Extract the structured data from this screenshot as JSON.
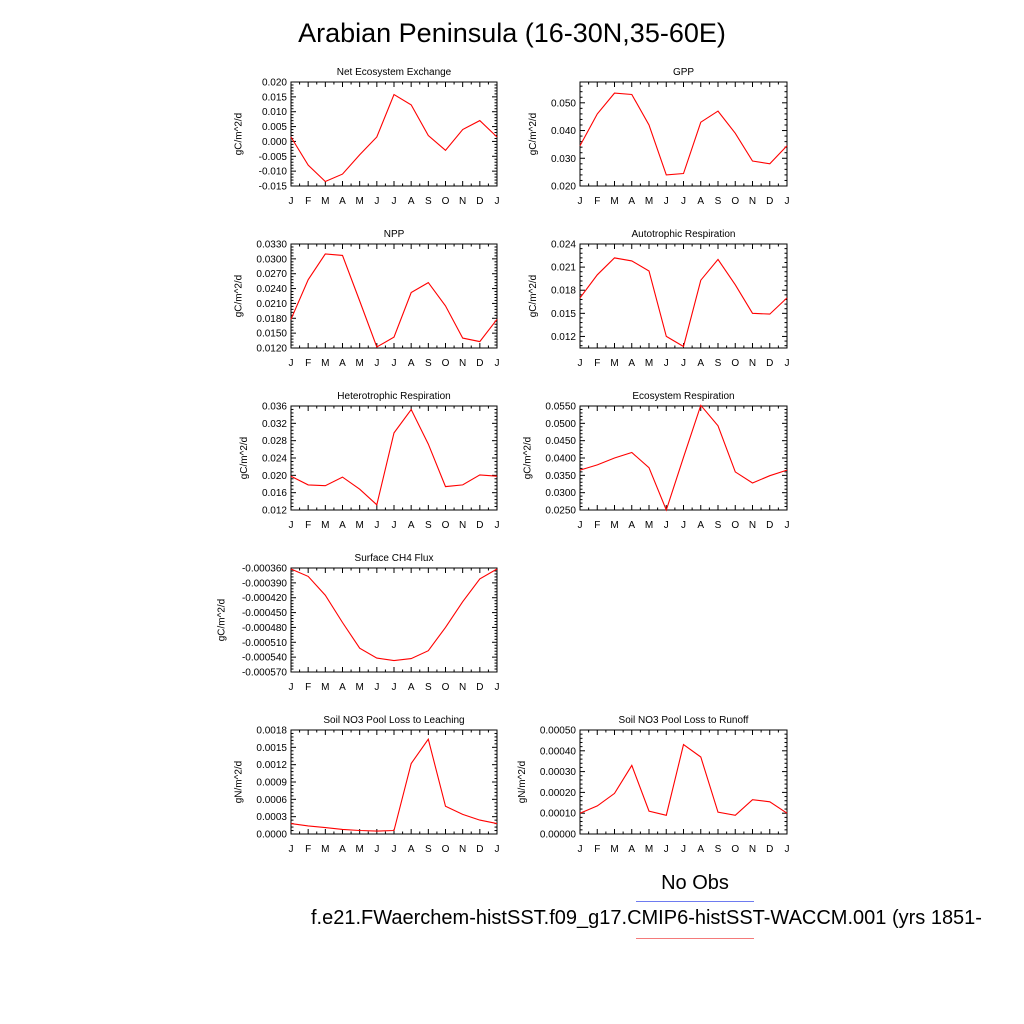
{
  "title": "Arabian Peninsula (16-30N,35-60E)",
  "legend": {
    "obs_label": "No Obs",
    "case_label": "f.e21.FWaerchem-histSST.f09_g17.CMIP6-histSST-WACCM.001 (yrs 1851-",
    "obs_color": "#6e7bf0",
    "case_color": "#f47a7a"
  },
  "colors": {
    "series": "#ff0000",
    "axis": "#000000"
  },
  "chart_data": [
    {
      "type": "line",
      "title": "Net Ecosystem Exchange",
      "ylabel": "gC/m^2/d",
      "categories": [
        "J",
        "F",
        "M",
        "A",
        "M",
        "J",
        "J",
        "A",
        "S",
        "O",
        "N",
        "D",
        "J"
      ],
      "series": [
        {
          "values": [
            0.0015,
            -0.008,
            -0.0135,
            -0.011,
            -0.0045,
            0.0015,
            0.0158,
            0.0123,
            0.002,
            -0.003,
            0.004,
            0.007,
            0.0015
          ]
        }
      ],
      "ylim": [
        -0.015,
        0.02
      ],
      "yticks": [
        -0.015,
        -0.01,
        -0.005,
        0.0,
        0.005,
        0.01,
        0.015,
        0.02
      ],
      "ytick_labels": [
        "-0.015",
        "-0.010",
        "-0.005",
        "0.000",
        "0.005",
        "0.010",
        "0.015",
        "0.020"
      ]
    },
    {
      "type": "line",
      "title": "GPP",
      "ylabel": "gC/m^2/d",
      "categories": [
        "J",
        "F",
        "M",
        "A",
        "M",
        "J",
        "J",
        "A",
        "S",
        "O",
        "N",
        "D",
        "J"
      ],
      "series": [
        {
          "values": [
            0.0345,
            0.046,
            0.0535,
            0.053,
            0.042,
            0.024,
            0.0245,
            0.043,
            0.047,
            0.039,
            0.029,
            0.028,
            0.0345
          ]
        }
      ],
      "ylim": [
        0.02,
        0.0575
      ],
      "yticks": [
        0.02,
        0.03,
        0.04,
        0.05
      ],
      "ytick_labels": [
        "0.020",
        "0.030",
        "0.040",
        "0.050"
      ]
    },
    {
      "type": "line",
      "title": "NPP",
      "ylabel": "gC/m^2/d",
      "categories": [
        "J",
        "F",
        "M",
        "A",
        "M",
        "J",
        "J",
        "A",
        "S",
        "O",
        "N",
        "D",
        "J"
      ],
      "series": [
        {
          "values": [
            0.0178,
            0.0258,
            0.031,
            0.0307,
            0.0215,
            0.0122,
            0.0142,
            0.0232,
            0.0252,
            0.0205,
            0.014,
            0.0133,
            0.0178
          ]
        }
      ],
      "ylim": [
        0.012,
        0.033
      ],
      "yticks": [
        0.012,
        0.015,
        0.018,
        0.021,
        0.024,
        0.027,
        0.03,
        0.033
      ],
      "ytick_labels": [
        "0.0120",
        "0.0150",
        "0.0180",
        "0.0210",
        "0.0240",
        "0.0270",
        "0.0300",
        "0.0330"
      ]
    },
    {
      "type": "line",
      "title": "Autotrophic Respiration",
      "ylabel": "gC/m^2/d",
      "categories": [
        "J",
        "F",
        "M",
        "A",
        "M",
        "J",
        "J",
        "A",
        "S",
        "O",
        "N",
        "D",
        "J"
      ],
      "series": [
        {
          "values": [
            0.017,
            0.02,
            0.0222,
            0.0218,
            0.0205,
            0.012,
            0.0107,
            0.0193,
            0.022,
            0.0187,
            0.015,
            0.0149,
            0.017
          ]
        }
      ],
      "ylim": [
        0.0105,
        0.024
      ],
      "yticks": [
        0.012,
        0.015,
        0.018,
        0.021,
        0.024
      ],
      "ytick_labels": [
        "0.012",
        "0.015",
        "0.018",
        "0.021",
        "0.024"
      ]
    },
    {
      "type": "line",
      "title": "Heterotrophic Respiration",
      "ylabel": "gC/m^2/d",
      "categories": [
        "J",
        "F",
        "M",
        "A",
        "M",
        "J",
        "J",
        "A",
        "S",
        "O",
        "N",
        "D",
        "J"
      ],
      "series": [
        {
          "values": [
            0.0198,
            0.0178,
            0.0176,
            0.0196,
            0.0168,
            0.0132,
            0.0298,
            0.0352,
            0.0272,
            0.0174,
            0.0178,
            0.0201,
            0.0198
          ]
        }
      ],
      "ylim": [
        0.012,
        0.036
      ],
      "yticks": [
        0.012,
        0.016,
        0.02,
        0.024,
        0.028,
        0.032,
        0.036
      ],
      "ytick_labels": [
        "0.012",
        "0.016",
        "0.020",
        "0.024",
        "0.028",
        "0.032",
        "0.036"
      ]
    },
    {
      "type": "line",
      "title": "Ecosystem Respiration",
      "ylabel": "gC/m^2/d",
      "categories": [
        "J",
        "F",
        "M",
        "A",
        "M",
        "J",
        "J",
        "A",
        "S",
        "O",
        "N",
        "D",
        "J"
      ],
      "series": [
        {
          "values": [
            0.0365,
            0.038,
            0.04,
            0.0416,
            0.0372,
            0.025,
            0.0402,
            0.0552,
            0.0493,
            0.036,
            0.0328,
            0.0349,
            0.0365
          ]
        }
      ],
      "ylim": [
        0.025,
        0.055
      ],
      "yticks": [
        0.025,
        0.03,
        0.035,
        0.04,
        0.045,
        0.05,
        0.055
      ],
      "ytick_labels": [
        "0.0250",
        "0.0300",
        "0.0350",
        "0.0400",
        "0.0450",
        "0.0500",
        "0.0550"
      ]
    },
    {
      "type": "line",
      "title": "Surface CH4 Flux",
      "ylabel": "gC/m^2/d",
      "categories": [
        "J",
        "F",
        "M",
        "A",
        "M",
        "J",
        "J",
        "A",
        "S",
        "O",
        "N",
        "D",
        "J"
      ],
      "series": [
        {
          "values": [
            -0.000362,
            -0.000377,
            -0.000415,
            -0.00047,
            -0.000522,
            -0.000542,
            -0.000547,
            -0.000543,
            -0.000527,
            -0.00048,
            -0.000428,
            -0.000382,
            -0.000362
          ]
        }
      ],
      "ylim": [
        -0.00057,
        -0.00036
      ],
      "yticks": [
        -0.00057,
        -0.00054,
        -0.00051,
        -0.00048,
        -0.00045,
        -0.00042,
        -0.00039,
        -0.00036
      ],
      "ytick_labels": [
        "-0.000570",
        "-0.000540",
        "-0.000510",
        "-0.000480",
        "-0.000450",
        "-0.000420",
        "-0.000390",
        "-0.000360"
      ]
    },
    {
      "type": "line",
      "title": "Soil NO3 Pool Loss to Leaching",
      "ylabel": "gN/m^2/d",
      "categories": [
        "J",
        "F",
        "M",
        "A",
        "M",
        "J",
        "J",
        "A",
        "S",
        "O",
        "N",
        "D",
        "J"
      ],
      "series": [
        {
          "values": [
            0.00018,
            0.00014,
            0.00011,
            8e-05,
            6e-05,
            5e-05,
            6e-05,
            0.00122,
            0.00164,
            0.00048,
            0.00034,
            0.00024,
            0.00018
          ]
        }
      ],
      "ylim": [
        0.0,
        0.0018
      ],
      "yticks": [
        0.0,
        0.0003,
        0.0006,
        0.0009,
        0.0012,
        0.0015,
        0.0018
      ],
      "ytick_labels": [
        "0.0000",
        "0.0003",
        "0.0006",
        "0.0009",
        "0.0012",
        "0.0015",
        "0.0018"
      ]
    },
    {
      "type": "line",
      "title": "Soil NO3 Pool Loss to Runoff",
      "ylabel": "gN/m^2/d",
      "categories": [
        "J",
        "F",
        "M",
        "A",
        "M",
        "J",
        "J",
        "A",
        "S",
        "O",
        "N",
        "D",
        "J"
      ],
      "series": [
        {
          "values": [
            0.0001,
            0.000135,
            0.000195,
            0.00033,
            0.00011,
            9e-05,
            0.00043,
            0.00037,
            0.000105,
            9e-05,
            0.000165,
            0.000155,
            0.0001
          ]
        }
      ],
      "ylim": [
        0.0,
        0.0005
      ],
      "yticks": [
        0.0,
        0.0001,
        0.0002,
        0.0003,
        0.0004,
        0.0005
      ],
      "ytick_labels": [
        "0.00000",
        "0.00010",
        "0.00020",
        "0.00030",
        "0.00040",
        "0.00050"
      ]
    }
  ]
}
